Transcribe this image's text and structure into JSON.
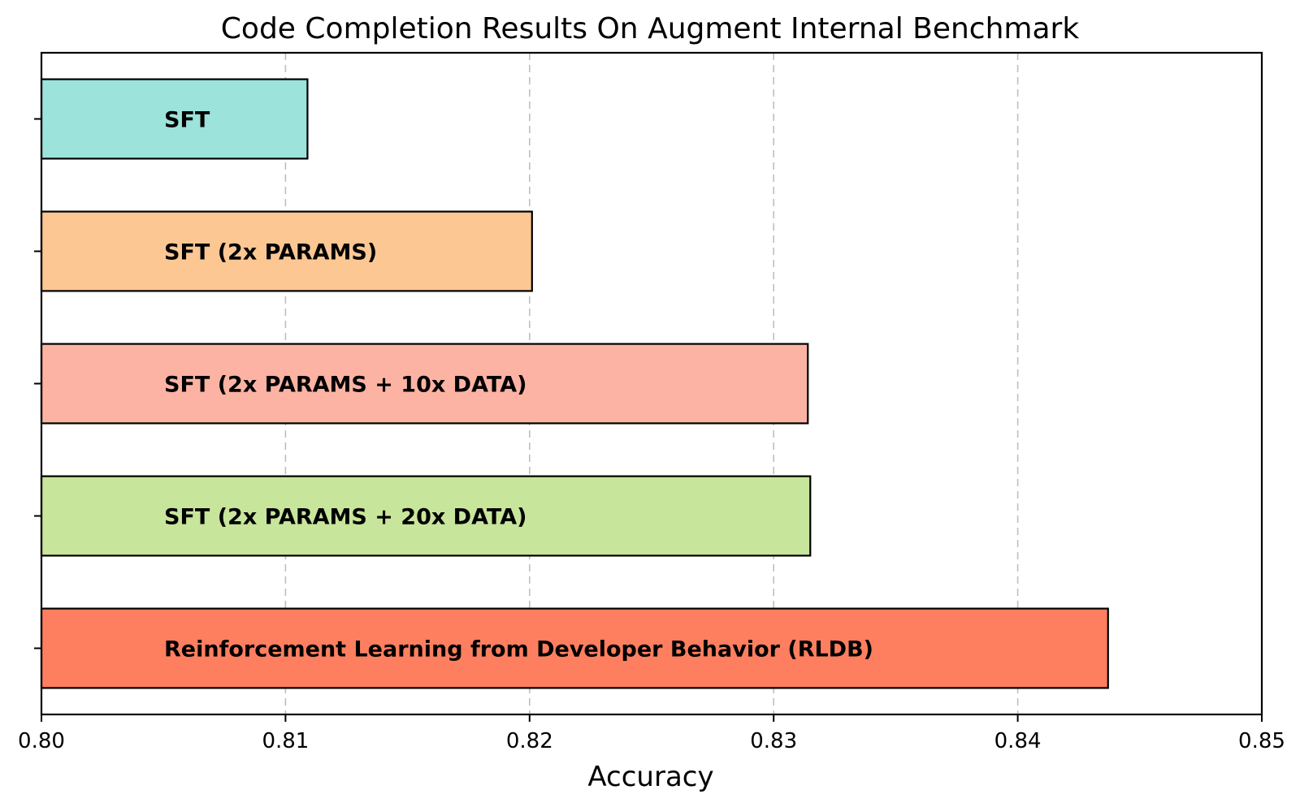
{
  "chart_data": {
    "type": "bar",
    "orientation": "horizontal",
    "title": "Code Completion Results On Augment Internal Benchmark",
    "xlabel": "Accuracy",
    "ylabel": "",
    "xlim": [
      0.8,
      0.85
    ],
    "xticks": [
      "0.80",
      "0.81",
      "0.82",
      "0.83",
      "0.84",
      "0.85"
    ],
    "grid": "x-dashed",
    "categories": [
      "SFT",
      "SFT (2x PARAMS)",
      "SFT (2x PARAMS + 10x DATA)",
      "SFT (2x PARAMS + 20x DATA)",
      "Reinforcement Learning from Developer Behavior (RLDB)"
    ],
    "values": [
      0.8109,
      0.8201,
      0.8314,
      0.8315,
      0.8437
    ],
    "colors": [
      "#9be3db",
      "#fcc793",
      "#fdb3a3",
      "#c8e59c",
      "#fe7f5f"
    ]
  }
}
